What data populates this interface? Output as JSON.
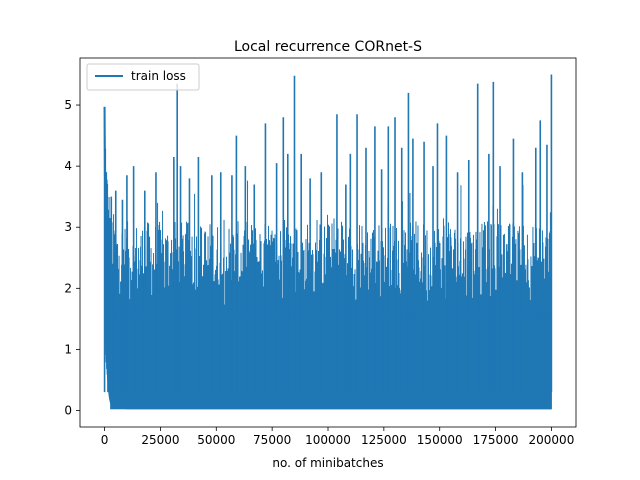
{
  "chart_data": {
    "type": "line",
    "title": "Local recurrence CORnet-S",
    "xlabel": "no. of minibatches",
    "ylabel": "",
    "xlim": [
      -11000,
      211000
    ],
    "ylim": [
      -0.27,
      5.77
    ],
    "x_ticks": [
      0,
      25000,
      50000,
      75000,
      100000,
      125000,
      150000,
      175000,
      200000
    ],
    "x_tick_labels": [
      "0",
      "25000",
      "50000",
      "75000",
      "100000",
      "125000",
      "150000",
      "175000",
      "200000"
    ],
    "y_ticks": [
      0,
      1,
      2,
      3,
      4,
      5
    ],
    "y_tick_labels": [
      "0",
      "1",
      "2",
      "3",
      "4",
      "5"
    ],
    "legend": {
      "position": "upper-left",
      "entries": [
        "train loss"
      ]
    },
    "grid": false,
    "colors": {
      "series": "#1f77b4"
    },
    "series": [
      {
        "name": "train loss",
        "x_range": [
          0,
          200000
        ],
        "note_shape": "dense noisy minibatch loss",
        "initial_value": 4.97,
        "floor_value": 0.02,
        "notable_spikes": [
          [
            0,
            4.97
          ],
          [
            1500,
            3.1
          ],
          [
            3000,
            3.5
          ],
          [
            5000,
            3.6
          ],
          [
            8000,
            3.45
          ],
          [
            10000,
            3.85
          ],
          [
            13000,
            4.0
          ],
          [
            18000,
            3.6
          ],
          [
            23000,
            3.9
          ],
          [
            31000,
            4.15
          ],
          [
            32500,
            5.35
          ],
          [
            34000,
            4.0
          ],
          [
            38000,
            3.8
          ],
          [
            42000,
            4.15
          ],
          [
            48000,
            3.85
          ],
          [
            52000,
            3.9
          ],
          [
            57000,
            3.85
          ],
          [
            59000,
            4.5
          ],
          [
            63000,
            4.0
          ],
          [
            67000,
            3.7
          ],
          [
            72000,
            4.7
          ],
          [
            77000,
            4.05
          ],
          [
            80000,
            4.8
          ],
          [
            82000,
            4.2
          ],
          [
            85000,
            5.48
          ],
          [
            88000,
            4.2
          ],
          [
            92000,
            3.8
          ],
          [
            97000,
            3.9
          ],
          [
            104000,
            4.85
          ],
          [
            108000,
            3.7
          ],
          [
            110000,
            4.2
          ],
          [
            113000,
            4.85
          ],
          [
            117000,
            4.3
          ],
          [
            121000,
            4.65
          ],
          [
            124000,
            3.95
          ],
          [
            127000,
            4.65
          ],
          [
            130000,
            4.8
          ],
          [
            133000,
            4.3
          ],
          [
            136000,
            5.2
          ],
          [
            138000,
            4.45
          ],
          [
            143000,
            4.4
          ],
          [
            147000,
            4.0
          ],
          [
            149000,
            4.7
          ],
          [
            153000,
            4.5
          ],
          [
            158000,
            3.9
          ],
          [
            163000,
            4.1
          ],
          [
            167000,
            5.35
          ],
          [
            172000,
            4.2
          ],
          [
            174000,
            5.38
          ],
          [
            177000,
            4.0
          ],
          [
            183000,
            4.45
          ],
          [
            187000,
            3.9
          ],
          [
            193000,
            4.3
          ],
          [
            195000,
            4.75
          ],
          [
            198000,
            4.35
          ],
          [
            200000,
            5.5
          ]
        ]
      }
    ]
  }
}
